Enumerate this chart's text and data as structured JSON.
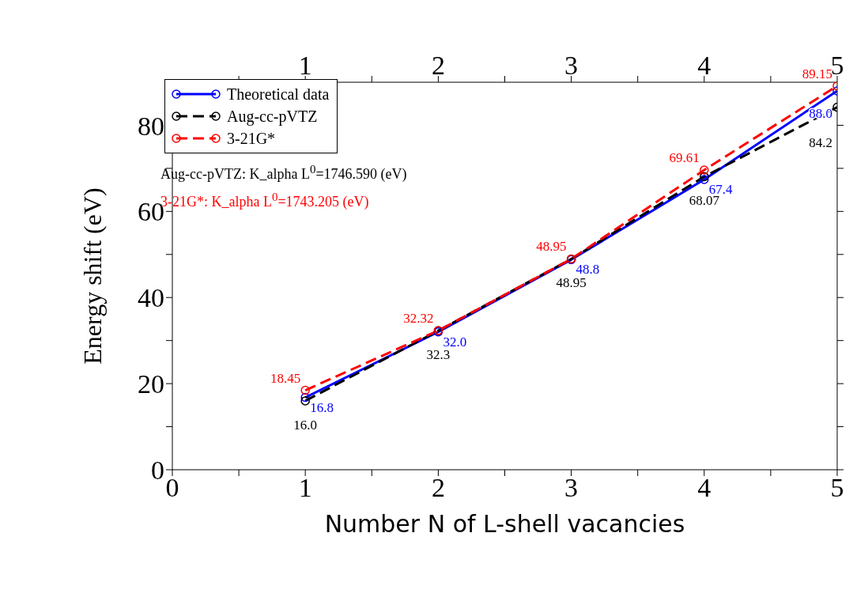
{
  "chart_data": {
    "type": "line",
    "xlabel": "Number N of L-shell vacancies",
    "ylabel": "Energy shift (eV)",
    "x": [
      1,
      2,
      3,
      4,
      5
    ],
    "series": [
      {
        "name": "Theoretical data",
        "color": "#0000ff",
        "line_style": "solid",
        "values": [
          16.8,
          32.0,
          48.8,
          67.4,
          88.0
        ],
        "value_labels": [
          "16.8",
          "32.0",
          "48.8",
          "67.4",
          "88.0"
        ]
      },
      {
        "name": "Aug-cc-pVTZ",
        "color": "#000000",
        "line_style": "dashed",
        "values": [
          16.0,
          32.3,
          48.95,
          68.07,
          84.2
        ],
        "value_labels": [
          "16.0",
          "32.3",
          "48.95",
          "68.07",
          "84.2"
        ]
      },
      {
        "name": "3-21G*",
        "color": "#ff0000",
        "line_style": "dashed",
        "values": [
          18.45,
          32.32,
          48.95,
          69.61,
          89.15
        ],
        "value_labels": [
          "18.45",
          "32.32",
          "48.95",
          "69.61",
          "89.15"
        ]
      }
    ],
    "xlim": [
      0,
      5
    ],
    "xticks": [
      0,
      {
        "value": 0.5,
        "label": null
      },
      1,
      {
        "value": 1.5,
        "label": null
      },
      2,
      {
        "value": 2.5,
        "label": null
      },
      3,
      {
        "value": 3.5,
        "label": null
      },
      4,
      {
        "value": 4.5,
        "label": null
      },
      5
    ],
    "x2lim": [
      0,
      5
    ],
    "x2ticks": [
      {
        "value": 0.5,
        "label": null
      },
      1,
      {
        "value": 1.5,
        "label": null
      },
      2,
      {
        "value": 2.5,
        "label": null
      },
      3,
      {
        "value": 3.5,
        "label": null
      },
      4,
      {
        "value": 4.5,
        "label": null
      },
      5
    ],
    "ylim": [
      0,
      90
    ],
    "yticks": [
      0,
      {
        "value": 10,
        "label": null
      },
      20,
      {
        "value": 30,
        "label": null
      },
      40,
      {
        "value": 50,
        "label": null
      },
      60,
      {
        "value": 70,
        "label": null
      },
      80
    ],
    "annotations": [
      "Aug-cc-pVTZ: K_alpha L$^{0}$=1746.590 (eV)",
      "3-21G*: K_alpha L$^{0}$=1743.205 (eV)"
    ],
    "marker": "circle",
    "grid": false,
    "legend": "top left"
  }
}
